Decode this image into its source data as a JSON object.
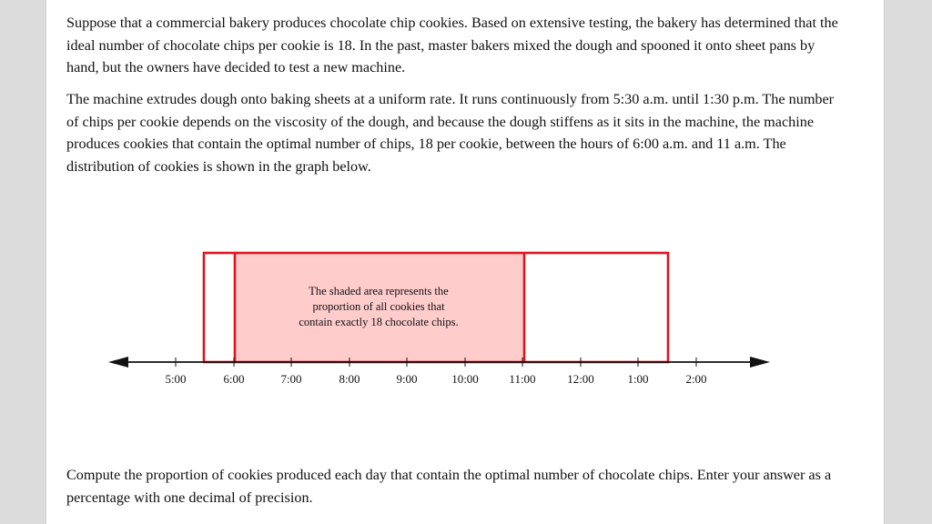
{
  "problem": {
    "intro": "Suppose that a commercial bakery produces chocolate chip cookies. Based on extensive testing, the bakery has determined that the ideal number of chocolate chips per cookie is 18. In the past, master bakers mixed the dough and spooned it onto sheet pans by hand, but the owners have decided to test a new machine.",
    "description": "The machine extrudes dough onto baking sheets at a uniform rate. It runs continuously from 5:30 a.m. until 1:30 p.m. The number of chips per cookie depends on the viscosity of the dough, and because the dough stiffens as it sits in the machine, the machine produces cookies that contain the optimal number of chips, 18 per cookie, between the hours of 6:00 a.m. and 11 a.m. The distribution of cookies is shown in the graph below.",
    "question": "Compute the proportion of cookies produced each day that contain the optimal number of chocolate chips. Enter your answer as a percentage with one decimal of precision."
  },
  "graph": {
    "tick_labels": [
      "5:00",
      "6:00",
      "7:00",
      "8:00",
      "9:00",
      "10:00",
      "11:00",
      "12:00",
      "1:00",
      "2:00"
    ],
    "annotation_lines": [
      "The shaded area represents the",
      "proportion of all cookies that",
      "contain exactly 18 chocolate chips."
    ],
    "colors": {
      "outline": "#e0141e",
      "shade": "#ffcccc",
      "axis": "#111111"
    }
  },
  "chart_data": {
    "type": "area",
    "distribution": "uniform",
    "x_range": [
      "5:30",
      "1:30"
    ],
    "shaded_range": [
      "6:00",
      "11:00"
    ],
    "tick_labels": [
      "5:00",
      "6:00",
      "7:00",
      "8:00",
      "9:00",
      "10:00",
      "11:00",
      "12:00",
      "1:00",
      "2:00"
    ],
    "grid": false
  }
}
